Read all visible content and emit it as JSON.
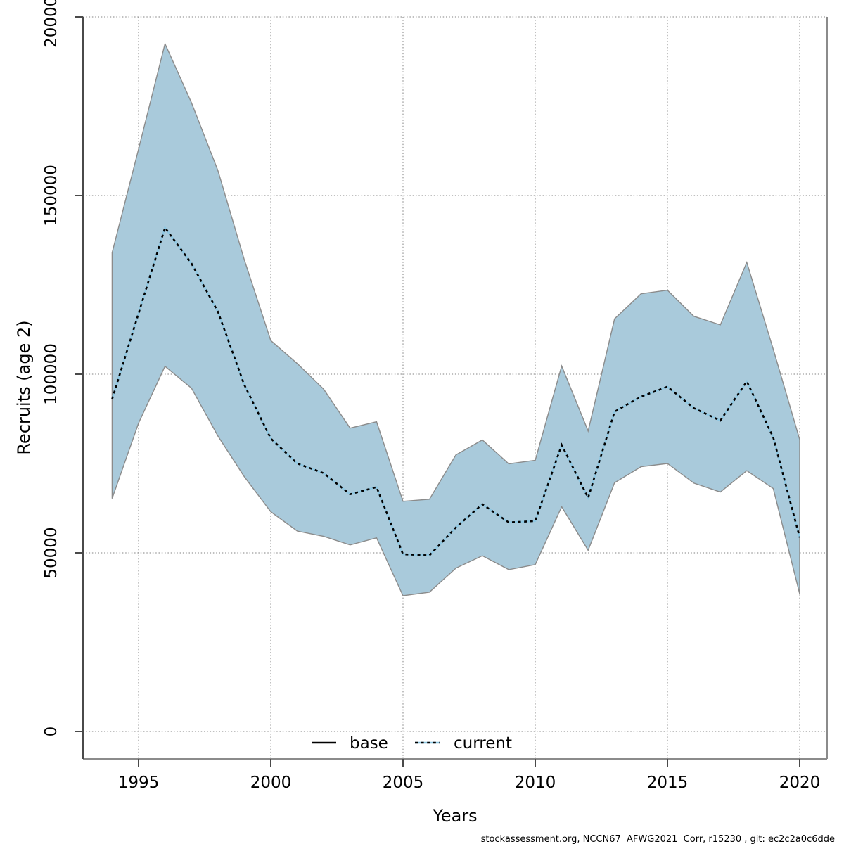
{
  "chart_data": {
    "type": "line",
    "title": "",
    "xlabel": "Years",
    "ylabel": "Recruits (age 2)",
    "footer": "stockassessment.org, NCCN67  AFWG2021  Corr, r15230 , git: ec2c2a0c6dde",
    "xlim": [
      1994,
      2020
    ],
    "ylim": [
      0,
      200000
    ],
    "x_ticks": [
      "1995",
      "2000",
      "2005",
      "2010",
      "2015",
      "2020"
    ],
    "y_ticks": [
      "0",
      "50000",
      "100000",
      "150000",
      "200000"
    ],
    "grid": "dotted",
    "legend": [
      {
        "label": "base",
        "line": "solid"
      },
      {
        "label": "current",
        "line": "dotted"
      }
    ],
    "colors": {
      "band_fill": "#a9cadb",
      "band_border": "#8b8b8b",
      "current_underlay": "#8ec7e2",
      "current_dash": "#000000",
      "grid": "#808080",
      "axis": "#4a4a4a",
      "box": "#8b8b8b",
      "text": "#000000"
    },
    "series": [
      {
        "name": "current",
        "x": [
          1994,
          1995,
          1996,
          1997,
          1998,
          1999,
          2000,
          2001,
          2002,
          2003,
          2004,
          2005,
          2006,
          2007,
          2008,
          2009,
          2010,
          2011,
          2012,
          2013,
          2014,
          2015,
          2016,
          2017,
          2018,
          2019,
          2020
        ],
        "values": [
          93000,
          117000,
          141000,
          131000,
          117500,
          97000,
          82000,
          75000,
          72300,
          66400,
          68400,
          49600,
          49300,
          57100,
          63600,
          58500,
          58900,
          80200,
          65400,
          89500,
          93700,
          96500,
          90500,
          87000,
          98000,
          82300,
          54300
        ],
        "upper": [
          134000,
          163000,
          192500,
          176000,
          157000,
          132000,
          109400,
          103000,
          95800,
          84900,
          86700,
          64400,
          65000,
          77400,
          81600,
          74900,
          75900,
          102300,
          84100,
          115500,
          122500,
          123500,
          116200,
          113800,
          131300,
          107000,
          81700
        ],
        "lower": [
          65200,
          86300,
          102200,
          96100,
          82700,
          71300,
          61500,
          56100,
          54600,
          52200,
          54200,
          38000,
          39000,
          45700,
          49200,
          45300,
          46700,
          62900,
          50700,
          69600,
          74100,
          75000,
          69500,
          67000,
          73000,
          68000,
          38500
        ]
      }
    ]
  }
}
